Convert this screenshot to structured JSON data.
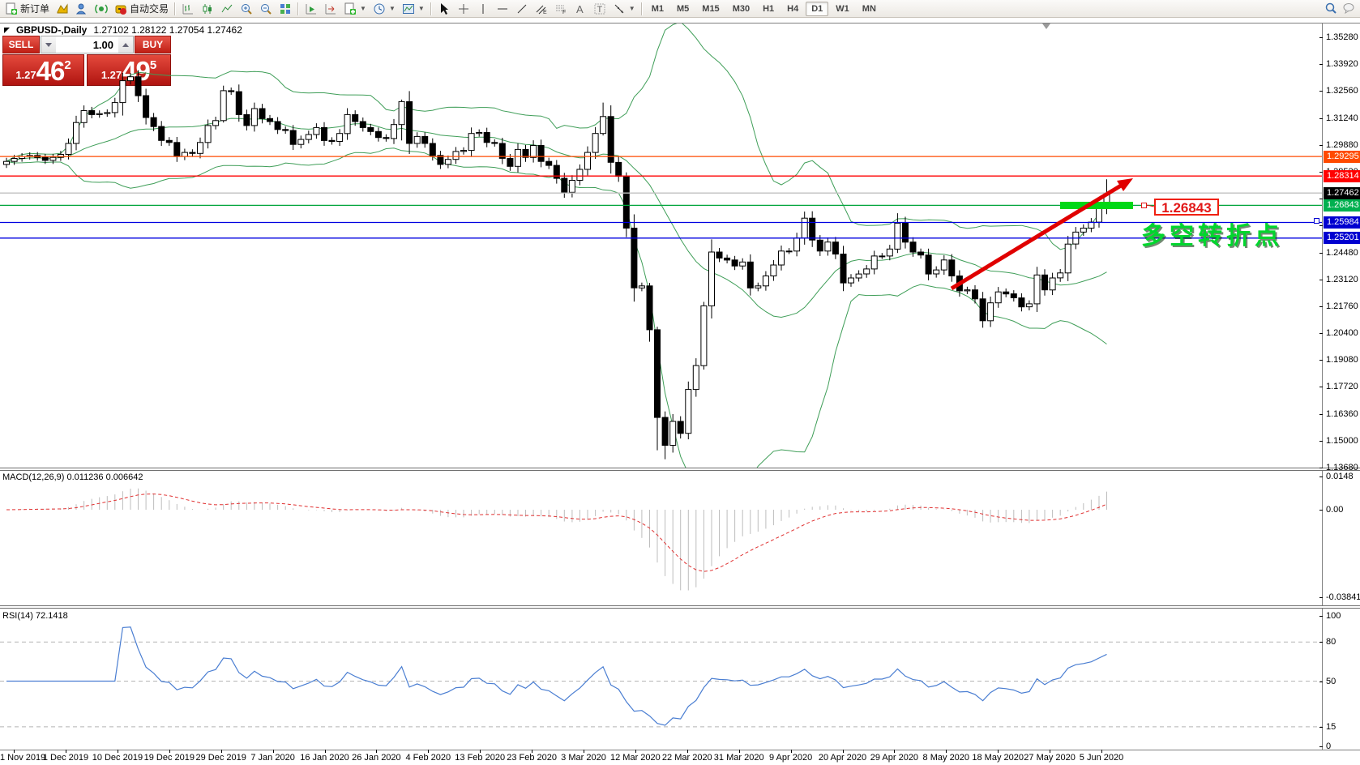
{
  "toolbar": {
    "new_order_label": "新订单",
    "auto_trading_label": "自动交易",
    "timeframes": [
      "M1",
      "M5",
      "M15",
      "M30",
      "H1",
      "H4",
      "D1",
      "W1",
      "MN"
    ],
    "active_timeframe": "D1"
  },
  "chart_header": {
    "symbol_period": "GBPUSD-,Daily",
    "ohlc_text": "1.27102 1.28122 1.27054 1.27462"
  },
  "trade_panel": {
    "sell_label": "SELL",
    "buy_label": "BUY",
    "volume": "1.00",
    "sell_price_small": "1.27",
    "sell_price_big": "46",
    "sell_price_sup": "2",
    "buy_price_small": "1.27",
    "buy_price_big": "49",
    "buy_price_sup": "5"
  },
  "price_axis": {
    "labels": [
      "1.35280",
      "1.33920",
      "1.32560",
      "1.31240",
      "1.29880",
      "1.28520",
      "1.27160",
      "1.25840",
      "1.24480",
      "1.23120",
      "1.21760",
      "1.20400",
      "1.19080",
      "1.17720",
      "1.16360",
      "1.15000",
      "1.13680"
    ]
  },
  "macd_panel": {
    "header": "MACD(12,26,9) 0.011236 0.006642",
    "axis_labels": [
      "0.0148",
      "0.00",
      "-0.038415"
    ]
  },
  "rsi_panel": {
    "header": "RSI(14) 72.1418",
    "axis_labels": [
      "100",
      "80",
      "50",
      "15",
      "0"
    ]
  },
  "date_axis": {
    "labels": [
      "1 Nov 2019",
      "1 Dec 2019",
      "10 Dec 2019",
      "19 Dec 2019",
      "29 Dec 2019",
      "7 Jan 2020",
      "16 Jan 2020",
      "26 Jan 2020",
      "4 Feb 2020",
      "13 Feb 2020",
      "23 Feb 2020",
      "3 Mar 2020",
      "12 Mar 2020",
      "22 Mar 2020",
      "31 Mar 2020",
      "9 Apr 2020",
      "20 Apr 2020",
      "29 Apr 2020",
      "8 May 2020",
      "18 May 2020",
      "27 May 2020",
      "5 Jun 2020"
    ]
  },
  "annotations": {
    "price_note": "1.26843",
    "turning_point_text": "多空转折点",
    "colors": {
      "note_red": "#e21717",
      "note_green": "#00d62e",
      "highlight_bar": "#00d816",
      "arrow": "#e00000"
    }
  },
  "chart_data": {
    "type": "candlestick",
    "symbol": "GBPUSD",
    "period": "Daily",
    "ohlc_display": {
      "open": "1.27102",
      "high": "1.28122",
      "low": "1.27054",
      "close": "1.27462"
    },
    "price_range": {
      "axis_top": 1.3528,
      "axis_bottom": 1.1368
    },
    "open_first": 1.289,
    "closes": [
      1.2905,
      1.292,
      1.293,
      1.2935,
      1.2925,
      1.291,
      1.2925,
      1.294,
      1.2995,
      1.31,
      1.316,
      1.314,
      1.3145,
      1.315,
      1.32,
      1.331,
      1.333,
      1.3235,
      1.3125,
      1.308,
      1.301,
      1.3,
      1.293,
      1.295,
      1.2945,
      1.3,
      1.3085,
      1.311,
      1.326,
      1.3255,
      1.314,
      1.3085,
      1.317,
      1.312,
      1.3105,
      1.3065,
      1.306,
      1.299,
      1.3015,
      1.304,
      1.3075,
      1.301,
      1.3005,
      1.3045,
      1.314,
      1.3105,
      1.3075,
      1.3055,
      1.3025,
      1.302,
      1.309,
      1.3205,
      1.2995,
      1.303,
      1.2995,
      1.2935,
      1.289,
      1.2915,
      1.2955,
      1.296,
      1.3045,
      1.305,
      1.3,
      1.2995,
      1.292,
      1.288,
      1.2965,
      1.2925,
      1.2985,
      1.2905,
      1.2885,
      1.282,
      1.275,
      1.281,
      1.2865,
      1.295,
      1.3045,
      1.313,
      1.29,
      1.283,
      1.257,
      1.227,
      1.228,
      1.206,
      1.162,
      1.148,
      1.16,
      1.154,
      1.176,
      1.188,
      1.218,
      1.245,
      1.242,
      1.241,
      1.238,
      1.24,
      1.227,
      1.228,
      1.233,
      1.2385,
      1.2455,
      1.2455,
      1.252,
      1.262,
      1.251,
      1.2455,
      1.25,
      1.244,
      1.2295,
      1.232,
      1.234,
      1.2365,
      1.243,
      1.243,
      1.2465,
      1.2595,
      1.25,
      1.245,
      1.2435,
      1.234,
      1.236,
      1.241,
      1.233,
      1.2255,
      1.226,
      1.2215,
      1.2105,
      1.2195,
      1.225,
      1.224,
      1.222,
      1.2175,
      1.219,
      1.2335,
      1.226,
      1.232,
      1.2345,
      1.249,
      1.255,
      1.257,
      1.26,
      1.267,
      1.2746
    ],
    "wick_overrides": {
      "15": [
        1.335,
        1.3135
      ],
      "28": [
        1.3285,
        1.31
      ],
      "51": [
        1.3215,
        1.301
      ],
      "77": [
        1.32,
        1.3035
      ],
      "80": [
        1.285,
        1.2525
      ],
      "83": [
        1.2295,
        1.2
      ],
      "84": [
        1.2075,
        1.1455
      ],
      "85": [
        1.165,
        1.141
      ],
      "88": [
        1.18,
        1.151
      ],
      "90": [
        1.22,
        1.186
      ],
      "115": [
        1.2645,
        1.2445
      ],
      "142": [
        1.2815,
        1.264
      ]
    },
    "indicators": [
      {
        "name": "Bollinger Bands",
        "period": 20,
        "deviation": 2,
        "color": "#3f9e58"
      },
      {
        "name": "MACD",
        "params": "12,26,9",
        "value": "0.011236",
        "signal": "0.006642",
        "hist_color": "#bdbdbd",
        "signal_color": "#e03030"
      },
      {
        "name": "RSI",
        "period": 14,
        "value": "72.1418",
        "color": "#4a7ed2",
        "levels": [
          80,
          50,
          15
        ]
      }
    ],
    "hlines": [
      {
        "label": "1.29295",
        "price": 1.29295,
        "line": "#ff4a00",
        "tag_bg": "#ff4a00"
      },
      {
        "label": "1.28314",
        "price": 1.28314,
        "line": "#ff0000",
        "tag_bg": "#ff0000"
      },
      {
        "label": "1.27462",
        "price": 1.27462,
        "line": "#c0c0c0",
        "tag_bg": "#000000"
      },
      {
        "label": "1.26843",
        "price": 1.26843,
        "line": "#00a53c",
        "tag_bg": "#00b050"
      },
      {
        "label": "1.25984",
        "price": 1.25984,
        "line": "#0000e0",
        "tag_bg": "#0000d0"
      },
      {
        "label": "1.25201",
        "price": 1.25201,
        "line": "#0000e0",
        "tag_bg": "#0000d0"
      }
    ],
    "macd_axis": {
      "top_value": 0.0148,
      "zero": "0.00",
      "bottom_value": -0.038415
    },
    "rsi_axis": {
      "max": 100,
      "min": 0
    }
  }
}
